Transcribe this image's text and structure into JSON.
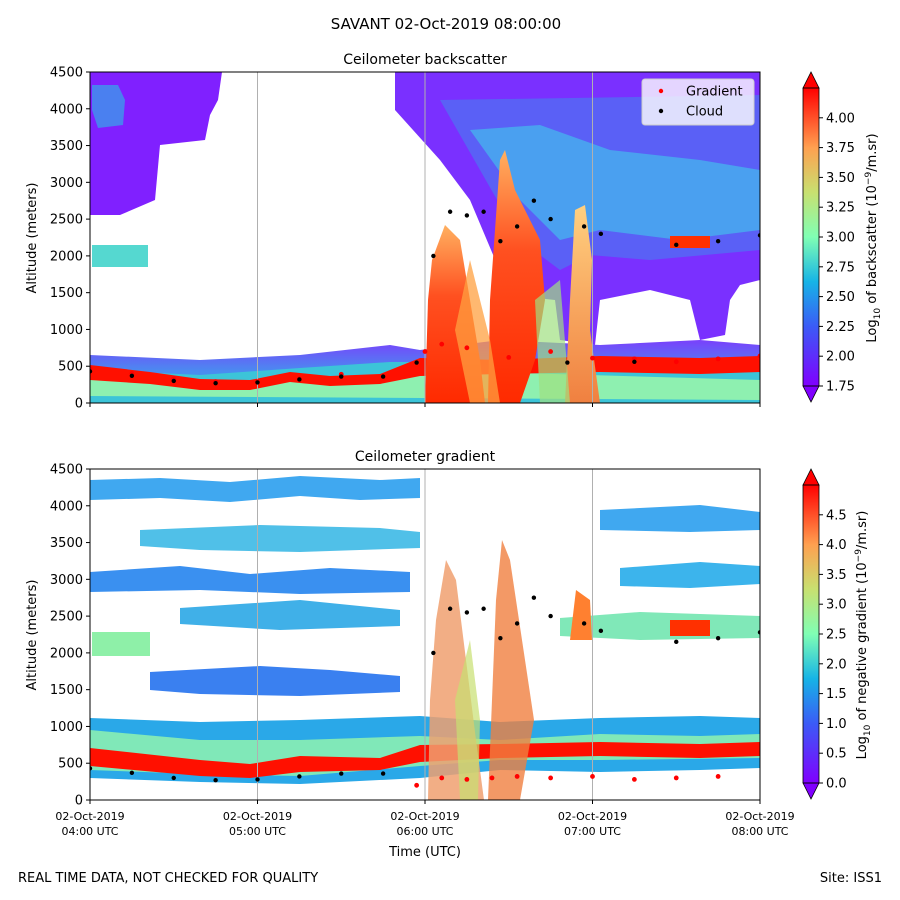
{
  "figure": {
    "suptitle": "SAVANT 02-Oct-2019 08:00:00",
    "footer_left": "REAL TIME DATA, NOT CHECKED FOR QUALITY",
    "footer_right": "Site: ISS1"
  },
  "chart_data": [
    {
      "type": "heatmap",
      "title": "Ceilometer backscatter",
      "ylabel": "Altitude (meters)",
      "xlabel": "",
      "ylim": [
        0,
        4500
      ],
      "yticks": [
        0,
        500,
        1000,
        1500,
        2000,
        2500,
        3000,
        3500,
        4000,
        4500
      ],
      "xticks": [
        "02-Oct-2019 04:00 UTC",
        "02-Oct-2019 05:00 UTC",
        "02-Oct-2019 06:00 UTC",
        "02-Oct-2019 07:00 UTC",
        "02-Oct-2019 08:00 UTC"
      ],
      "x_tick_labels_visible": false,
      "grid": "vertical lines at x ticks",
      "legend": {
        "placement": "top-right",
        "entries": [
          {
            "label": "Gradient",
            "color": "#ff0000"
          },
          {
            "label": "Cloud",
            "color": "#000000"
          }
        ]
      },
      "colorbar": {
        "label_parts": [
          "Log",
          "10",
          " of backscatter (10",
          "−9",
          "/m.sr)"
        ],
        "range": [
          1.75,
          4.25
        ],
        "ticks": [
          "1.75",
          "2.00",
          "2.25",
          "2.50",
          "2.75",
          "3.00",
          "3.25",
          "3.50",
          "3.75",
          "4.00"
        ],
        "colormap": "rainbow",
        "extend": "both"
      },
      "gradient_points": {
        "x_hours": [
          4.0,
          4.25,
          4.5,
          4.75,
          5.0,
          5.25,
          5.5,
          5.75,
          6.0,
          6.1,
          6.25,
          6.5,
          6.75,
          7.0,
          7.25,
          7.5,
          7.75,
          8.0
        ],
        "altitude_m": [
          470,
          400,
          330,
          290,
          290,
          330,
          390,
          360,
          700,
          800,
          750,
          620,
          700,
          610,
          600,
          560,
          600,
          640
        ]
      },
      "cloud_points": {
        "x_hours": [
          4.0,
          4.25,
          4.5,
          4.75,
          5.0,
          5.25,
          5.5,
          5.75,
          5.95,
          6.05,
          6.15,
          6.25,
          6.35,
          6.45,
          6.55,
          6.65,
          6.75,
          6.85,
          6.95,
          7.05,
          7.25,
          7.5,
          7.75,
          8.0
        ],
        "altitude_m": [
          430,
          370,
          300,
          270,
          280,
          320,
          360,
          360,
          550,
          2000,
          2600,
          2550,
          2600,
          2200,
          2400,
          2750,
          2500,
          550,
          2400,
          2300,
          560,
          2150,
          2200,
          2280
        ]
      }
    },
    {
      "type": "heatmap",
      "title": "Ceilometer gradient",
      "ylabel": "Altitude (meters)",
      "xlabel": "Time (UTC)",
      "ylim": [
        0,
        4500
      ],
      "yticks": [
        0,
        500,
        1000,
        1500,
        2000,
        2500,
        3000,
        3500,
        4000,
        4500
      ],
      "xticks": [
        "02-Oct-2019 04:00 UTC",
        "02-Oct-2019 05:00 UTC",
        "02-Oct-2019 06:00 UTC",
        "02-Oct-2019 07:00 UTC",
        "02-Oct-2019 08:00 UTC"
      ],
      "xtick_lines": [
        [
          "02-Oct-2019",
          "04:00 UTC"
        ],
        [
          "02-Oct-2019",
          "05:00 UTC"
        ],
        [
          "02-Oct-2019",
          "06:00 UTC"
        ],
        [
          "02-Oct-2019",
          "07:00 UTC"
        ],
        [
          "02-Oct-2019",
          "08:00 UTC"
        ]
      ],
      "grid": "vertical lines at x ticks",
      "colorbar": {
        "label_parts": [
          "Log",
          "10",
          " of negative gradient (10",
          "−9",
          "/m.sr)"
        ],
        "range": [
          0.0,
          5.0
        ],
        "ticks": [
          "0.0",
          "0.5",
          "1.0",
          "1.5",
          "2.0",
          "2.5",
          "3.0",
          "3.5",
          "4.0",
          "4.5"
        ],
        "colormap": "rainbow",
        "extend": "both"
      },
      "gradient_points": {
        "x_hours": [
          5.95,
          6.1,
          6.25,
          6.4,
          6.55,
          6.75,
          7.0,
          7.25,
          7.5,
          7.75
        ],
        "altitude_m": [
          200,
          300,
          280,
          300,
          320,
          300,
          320,
          280,
          300,
          320
        ]
      },
      "cloud_points": {
        "x_hours": [
          4.0,
          4.25,
          4.5,
          4.75,
          5.0,
          5.25,
          5.5,
          5.75,
          6.05,
          6.15,
          6.25,
          6.35,
          6.45,
          6.55,
          6.65,
          6.75,
          6.95,
          7.05,
          7.5,
          7.75,
          8.0
        ],
        "altitude_m": [
          430,
          370,
          300,
          270,
          280,
          320,
          360,
          360,
          2000,
          2600,
          2550,
          2600,
          2200,
          2400,
          2750,
          2500,
          2400,
          2300,
          2150,
          2200,
          2280
        ]
      }
    }
  ]
}
